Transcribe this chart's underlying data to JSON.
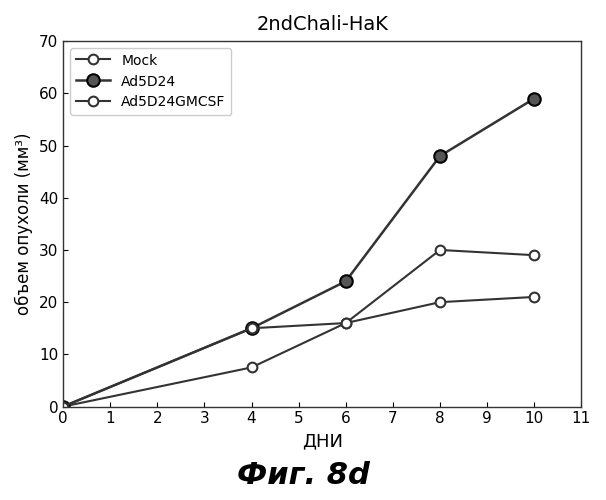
{
  "title": "2ndChali-HaK",
  "xlabel": "ДНИ",
  "ylabel": "объем опухоли (мм³)",
  "caption": "Фиг. 8d",
  "xlim": [
    0,
    11
  ],
  "ylim": [
    0,
    70
  ],
  "xticks": [
    0,
    1,
    2,
    3,
    4,
    5,
    6,
    7,
    8,
    9,
    10,
    11
  ],
  "yticks": [
    0,
    10,
    20,
    30,
    40,
    50,
    60,
    70
  ],
  "series": [
    {
      "label": "Mock",
      "x": [
        0,
        4,
        6,
        8,
        10
      ],
      "y": [
        0,
        7.5,
        16,
        30,
        29
      ],
      "color": "#333333",
      "marker": "o",
      "marker_fill": "white",
      "linewidth": 1.5,
      "markersize": 7
    },
    {
      "label": "Ad5D24",
      "x": [
        0,
        4,
        6,
        8,
        10
      ],
      "y": [
        0,
        15,
        24,
        48,
        59
      ],
      "color": "#333333",
      "marker": "o",
      "marker_fill": "dark",
      "linewidth": 1.8,
      "markersize": 8
    },
    {
      "label": "Ad5D24GMCSF",
      "x": [
        0,
        4,
        6,
        8,
        10
      ],
      "y": [
        0,
        15,
        16,
        20,
        21
      ],
      "color": "#333333",
      "marker": "o",
      "marker_fill": "white",
      "linewidth": 1.5,
      "markersize": 7
    }
  ],
  "background_color": "#ffffff",
  "legend_loc": "upper left"
}
